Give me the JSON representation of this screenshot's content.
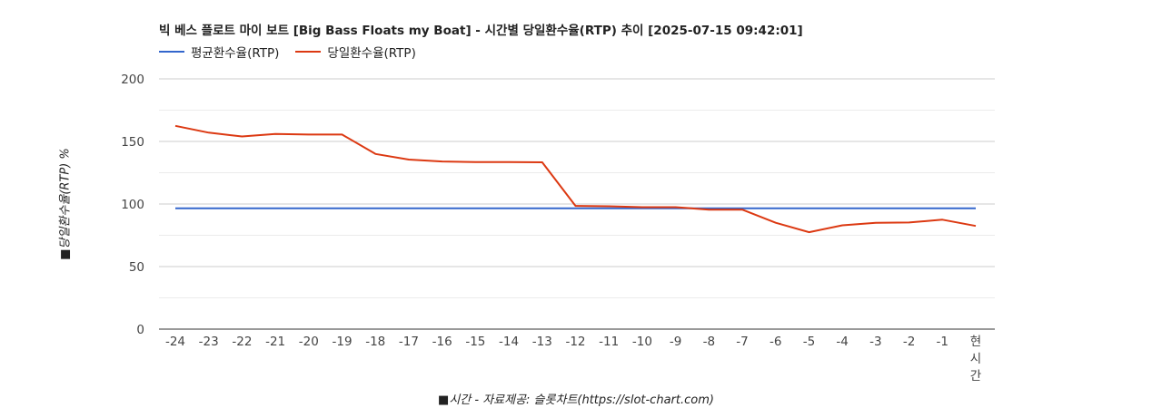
{
  "chart_data": {
    "type": "line",
    "title": "빅 베스 플로트 마이 보트 [Big Bass Floats my Boat] - 시간별 당일환수율(RTP) 추이 [2025-07-15 09:42:01]",
    "xlabel": "■시간 - 자료제공: 슬롯차트(https://slot-chart.com)",
    "ylabel": "■당일환수율(RTP) %",
    "categories": [
      "-24",
      "-23",
      "-22",
      "-21",
      "-20",
      "-19",
      "-18",
      "-17",
      "-16",
      "-15",
      "-14",
      "-13",
      "-12",
      "-11",
      "-10",
      "-9",
      "-8",
      "-7",
      "-6",
      "-5",
      "-4",
      "-3",
      "-2",
      "-1",
      "현시간"
    ],
    "ylim": [
      0,
      200
    ],
    "yticks": [
      0,
      50,
      100,
      150,
      200
    ],
    "grid": true,
    "legend_position": "top-left",
    "series": [
      {
        "name": "평균환수율(RTP)",
        "color": "#3366cc",
        "values": [
          96.5,
          96.5,
          96.5,
          96.5,
          96.5,
          96.5,
          96.5,
          96.5,
          96.5,
          96.5,
          96.5,
          96.5,
          96.5,
          96.5,
          96.5,
          96.5,
          96.5,
          96.5,
          96.5,
          96.5,
          96.5,
          96.5,
          96.5,
          96.5,
          96.5
        ]
      },
      {
        "name": "당일환수율(RTP)",
        "color": "#dc3912",
        "values": [
          162.5,
          157,
          154,
          156,
          155.5,
          155.5,
          140,
          135.5,
          134,
          133.5,
          133.5,
          133.3,
          98.5,
          98.2,
          97.5,
          97.5,
          95.5,
          95.5,
          85,
          77.5,
          83,
          85,
          85.2,
          87.5,
          82.5
        ]
      }
    ]
  }
}
